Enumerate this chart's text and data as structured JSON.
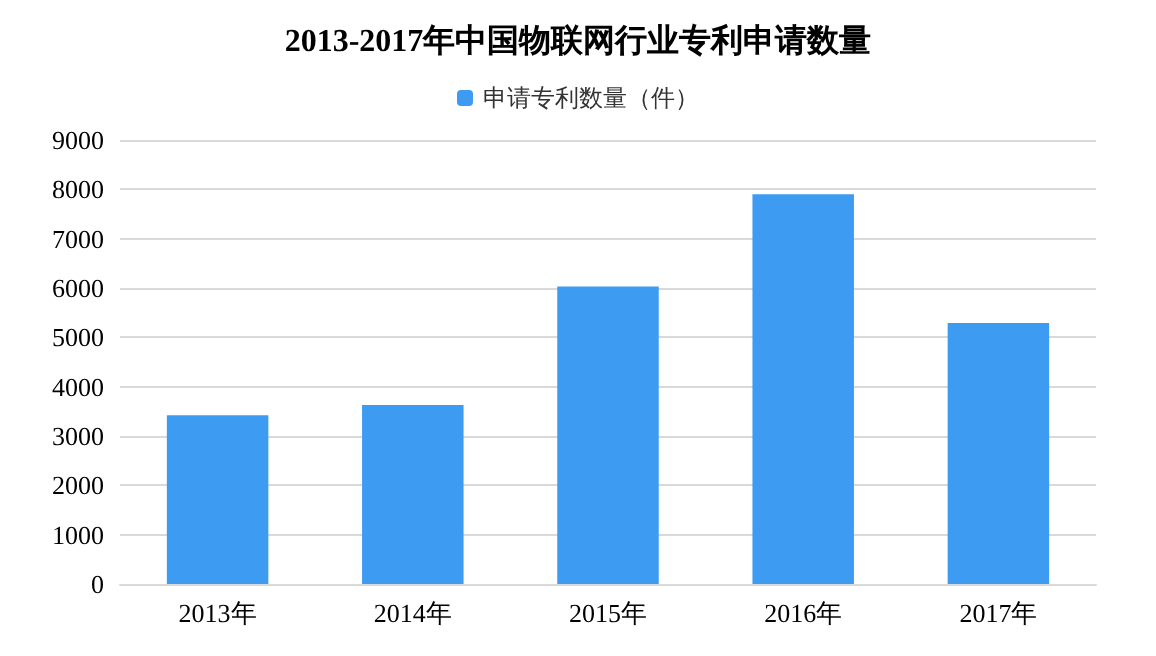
{
  "chart_data": {
    "type": "bar",
    "title": "2013-2017年中国物联网行业专利申请数量",
    "categories": [
      "2013年",
      "2014年",
      "2015年",
      "2016年",
      "2017年"
    ],
    "series": [
      {
        "name": "申请专利数量（件）",
        "color": "#3d9cf2",
        "values": [
          3420,
          3630,
          6030,
          7900,
          5290
        ]
      }
    ],
    "ylim": [
      0,
      9000
    ],
    "yticks": [
      0,
      1000,
      2000,
      3000,
      4000,
      5000,
      6000,
      7000,
      8000,
      9000
    ],
    "grid": "y",
    "legend": "top"
  }
}
